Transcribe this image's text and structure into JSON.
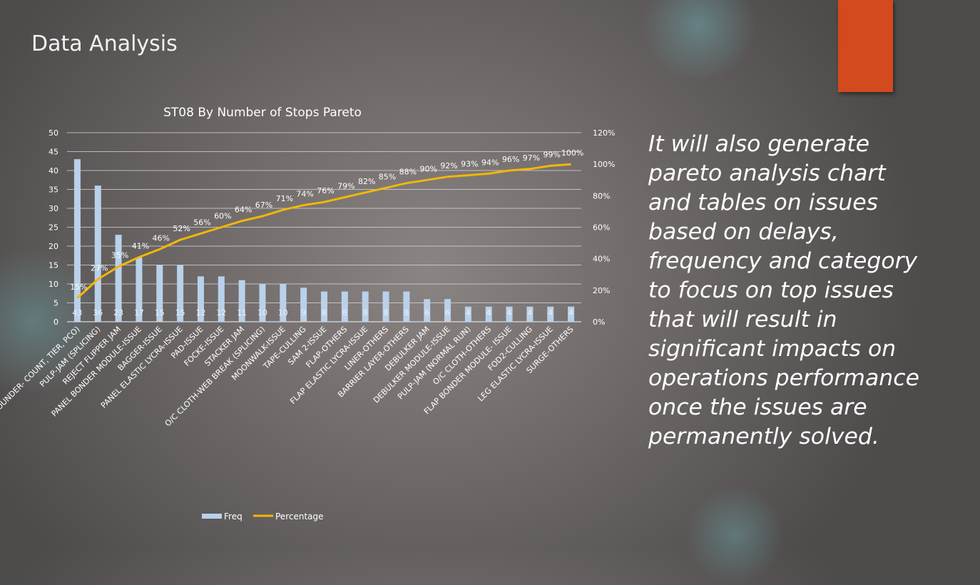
{
  "slide": {
    "title": "Data Analysis",
    "body": "It will also generate pareto analysis chart and tables on issues based on delays, frequency and category to focus on top issues that will result in significant impacts on operations performance once the issues are permanently solved."
  },
  "colors": {
    "bar": "#b9d1ea",
    "line": "#f2b705",
    "accent": "#d24a1e",
    "text": "#ffffff"
  },
  "chart_data": {
    "type": "bar",
    "title": "ST08 By Number of Stops Pareto",
    "categories": [
      "ROUNDER- COUNT, TIER, PCO)",
      "PULP-JAM (SPLICING)",
      "REJECT FLIPPER JAM",
      "PANEL BONDER MODULE-ISSUE",
      "BAGGER-ISSUE",
      "PANEL ELASTIC LYCRA-ISSUE",
      "PAD-ISSUE",
      "FOCKE-ISSUE",
      "STACKER JAM",
      "O/C CLOTH-WEB BREAK (SPLICING)",
      "MOONWALK-ISSUE",
      "TAPE-CULLING",
      "SAM 2-ISSUE",
      "FLAP-OTHERS",
      "FLAP ELASTIC LYCRA-ISSUE",
      "LINER-OTHERS",
      "BARRIER LAYER-OTHERS",
      "DEBULKER JAM",
      "DEBULKER MODULE-ISSUE",
      "PULP-JAM (NORMAL RUN)",
      "O/C CLOTH-OTHERS",
      "FLAP BONDER MODULE- ISSUE",
      "FOD2-CULLING",
      "LEG ELASTIC LYCRA-ISSUE",
      "SURGE-OTHERS"
    ],
    "series": [
      {
        "name": "Freq",
        "axis": "left",
        "values": [
          43,
          36,
          23,
          17,
          15,
          15,
          12,
          12,
          11,
          10,
          10,
          9,
          8,
          8,
          8,
          8,
          8,
          6,
          6,
          4,
          4,
          4,
          4,
          4,
          4
        ]
      },
      {
        "name": "Percentage",
        "axis": "right",
        "type": "line",
        "values": [
          15,
          27,
          35,
          41,
          46,
          52,
          56,
          60,
          64,
          67,
          71,
          74,
          76,
          79,
          82,
          85,
          88,
          90,
          92,
          93,
          94,
          96,
          97,
          99,
          100
        ]
      }
    ],
    "bar_labels": [
      "43",
      "36",
      "23",
      "17",
      "15",
      "15",
      "12",
      "12",
      "11",
      "10",
      "10",
      "9",
      "8",
      "8",
      "8",
      "8",
      "8",
      "6",
      "6",
      "4",
      "4",
      "4",
      "4",
      "4",
      "4"
    ],
    "line_labels": [
      "15%",
      "27%",
      "35%",
      "41%",
      "46%",
      "52%",
      "56%",
      "60%",
      "64%",
      "67%",
      "71%",
      "74%",
      "76%",
      "79%",
      "82%",
      "85%",
      "88%",
      "90%",
      "92%",
      "93%",
      "94%",
      "96%",
      "97%",
      "99%",
      "100%"
    ],
    "y_left": {
      "ticks": [
        "0",
        "5",
        "10",
        "15",
        "20",
        "25",
        "30",
        "35",
        "40",
        "45",
        "50"
      ],
      "ylim": [
        0,
        50
      ]
    },
    "y_right": {
      "ticks": [
        "0%",
        "20%",
        "40%",
        "60%",
        "80%",
        "100%",
        "120%"
      ],
      "ylim": [
        0,
        120
      ]
    },
    "grid": true,
    "legend": {
      "position": "bottom",
      "entries": [
        "Freq",
        "Percentage"
      ]
    }
  }
}
